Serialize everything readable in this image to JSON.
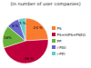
{
  "chart_data": {
    "type": "pie",
    "title": "(in number of user companies)",
    "categories": [
      "PS",
      "PS+HIPS+PSEG",
      "PP",
      "r-PAll",
      "r-PEt"
    ],
    "values": [
      24,
      46,
      16,
      9,
      5
    ],
    "value_labels": [
      "24 %",
      "46 %",
      "16%",
      "9 %",
      "5 %"
    ],
    "colors": [
      "#F97B2F",
      "#C0003C",
      "#6AB23B",
      "#6666CC",
      "#66CCCC"
    ],
    "data_labels": true,
    "legend": "right"
  }
}
